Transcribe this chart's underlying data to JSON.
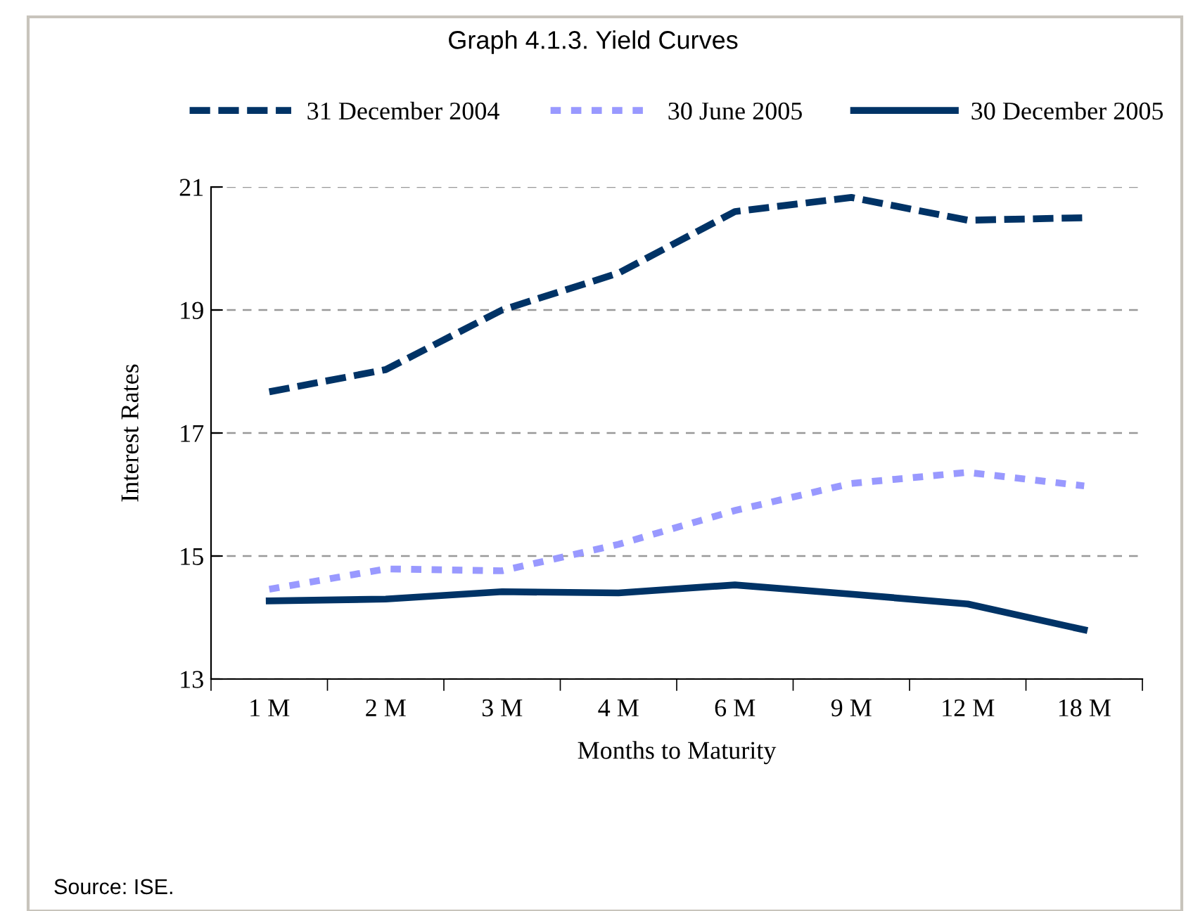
{
  "chart_data": {
    "type": "line",
    "title": "Graph 4.1.3. Yield Curves",
    "xlabel": "Months to Maturity",
    "ylabel": "Interest Rates",
    "categories": [
      "1 M",
      "2 M",
      "3 M",
      "4 M",
      "6 M",
      "9 M",
      "12 M",
      "18 M"
    ],
    "series": [
      {
        "name": "31 December 2004",
        "color": "#003366",
        "line_style": "dashed",
        "values": [
          17.67,
          18.03,
          19.0,
          19.6,
          20.6,
          20.83,
          20.46,
          20.5
        ]
      },
      {
        "name": "30 June 2005",
        "color": "#9999ff",
        "line_style": "dotted",
        "values": [
          14.46,
          14.79,
          14.76,
          15.19,
          15.74,
          16.18,
          16.36,
          16.14
        ]
      },
      {
        "name": "30 December 2005",
        "color": "#003366",
        "line_style": "solid",
        "values": [
          14.27,
          14.3,
          14.42,
          14.4,
          14.53,
          14.38,
          14.22,
          13.8
        ]
      }
    ],
    "ylim": [
      13,
      21
    ],
    "yticks": [
      13,
      15,
      17,
      19,
      21
    ],
    "grid": "y",
    "legend": "top",
    "marker": "none",
    "annotations": [
      "Source: ISE."
    ]
  }
}
